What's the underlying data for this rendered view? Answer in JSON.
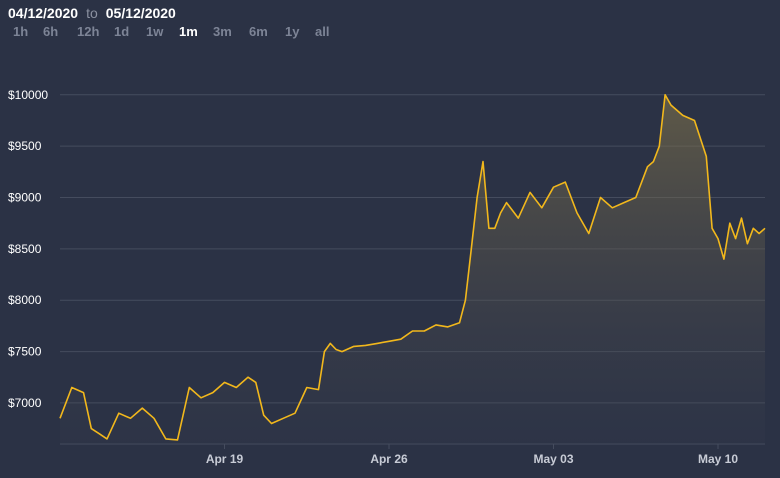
{
  "header": {
    "start_date": "04/12/2020",
    "separator": "to",
    "end_date": "05/12/2020"
  },
  "ranges": [
    {
      "label": "1h",
      "active": false
    },
    {
      "label": "6h",
      "active": false
    },
    {
      "label": "12h",
      "active": false
    },
    {
      "label": "1d",
      "active": false
    },
    {
      "label": "1w",
      "active": false
    },
    {
      "label": "1m",
      "active": true
    },
    {
      "label": "3m",
      "active": false
    },
    {
      "label": "6m",
      "active": false
    },
    {
      "label": "1y",
      "active": false
    },
    {
      "label": "all",
      "active": false
    }
  ],
  "colors": {
    "background": "#2b3245",
    "line": "#f2b81c",
    "grid": "#454c5e"
  },
  "chart_data": {
    "type": "area",
    "title": "",
    "xlabel": "",
    "ylabel": "",
    "ylim": [
      6600,
      10300
    ],
    "xlim": [
      "2020-04-12",
      "2020-05-12"
    ],
    "yticks": [
      7000,
      7500,
      8000,
      8500,
      9000,
      9500,
      10000
    ],
    "ytick_labels": [
      "$7000",
      "$7500",
      "$8000",
      "$8500",
      "$9000",
      "$9500",
      "$10000"
    ],
    "xticks": [
      "2020-04-19",
      "2020-04-26",
      "2020-05-03",
      "2020-05-10"
    ],
    "xtick_labels": [
      "Apr 19",
      "Apr 26",
      "May 03",
      "May 10"
    ],
    "grid": true,
    "series": [
      {
        "x": [
          "2020-04-12",
          "2020-04-12 12:00",
          "2020-04-13",
          "2020-04-13 08:00",
          "2020-04-13 16:00",
          "2020-04-14",
          "2020-04-14 12:00",
          "2020-04-15",
          "2020-04-15 12:00",
          "2020-04-16",
          "2020-04-16 12:00",
          "2020-04-17",
          "2020-04-17 12:00",
          "2020-04-18",
          "2020-04-18 12:00",
          "2020-04-19",
          "2020-04-19 12:00",
          "2020-04-20",
          "2020-04-20 08:00",
          "2020-04-20 16:00",
          "2020-04-21",
          "2020-04-21 12:00",
          "2020-04-22",
          "2020-04-22 12:00",
          "2020-04-23",
          "2020-04-23 06:00",
          "2020-04-23 12:00",
          "2020-04-23 18:00",
          "2020-04-24",
          "2020-04-24 12:00",
          "2020-04-25",
          "2020-04-25 12:00",
          "2020-04-26",
          "2020-04-26 12:00",
          "2020-04-27",
          "2020-04-27 12:00",
          "2020-04-28",
          "2020-04-28 12:00",
          "2020-04-29",
          "2020-04-29 06:00",
          "2020-04-29 12:00",
          "2020-04-29 18:00",
          "2020-04-30",
          "2020-04-30 06:00",
          "2020-04-30 12:00",
          "2020-04-30 18:00",
          "2020-05-01",
          "2020-05-01 12:00",
          "2020-05-02",
          "2020-05-02 12:00",
          "2020-05-03",
          "2020-05-03 12:00",
          "2020-05-04",
          "2020-05-04 12:00",
          "2020-05-05",
          "2020-05-05 12:00",
          "2020-05-06",
          "2020-05-06 12:00",
          "2020-05-07",
          "2020-05-07 06:00",
          "2020-05-07 12:00",
          "2020-05-07 18:00",
          "2020-05-08",
          "2020-05-08 12:00",
          "2020-05-09",
          "2020-05-09 12:00",
          "2020-05-09 18:00",
          "2020-05-10",
          "2020-05-10 06:00",
          "2020-05-10 12:00",
          "2020-05-10 18:00",
          "2020-05-11",
          "2020-05-11 06:00",
          "2020-05-11 12:00",
          "2020-05-11 18:00",
          "2020-05-12"
        ],
        "values": [
          6850,
          7150,
          7100,
          6750,
          6700,
          6650,
          6900,
          6850,
          6950,
          6850,
          6650,
          6640,
          7150,
          7050,
          7100,
          7200,
          7150,
          7250,
          7200,
          6880,
          6800,
          6850,
          6900,
          7150,
          7130,
          7500,
          7580,
          7520,
          7500,
          7550,
          7560,
          7580,
          7600,
          7620,
          7700,
          7700,
          7760,
          7740,
          7780,
          8000,
          8500,
          9000,
          9350,
          8700,
          8700,
          8850,
          8950,
          8800,
          9050,
          8900,
          9100,
          9150,
          8850,
          8650,
          9000,
          8900,
          8950,
          9000,
          9300,
          9350,
          9500,
          10000,
          9900,
          9800,
          9750,
          9400,
          8700,
          8600,
          8400,
          8750,
          8600,
          8800,
          8550,
          8700,
          8650,
          8700
        ]
      }
    ]
  }
}
